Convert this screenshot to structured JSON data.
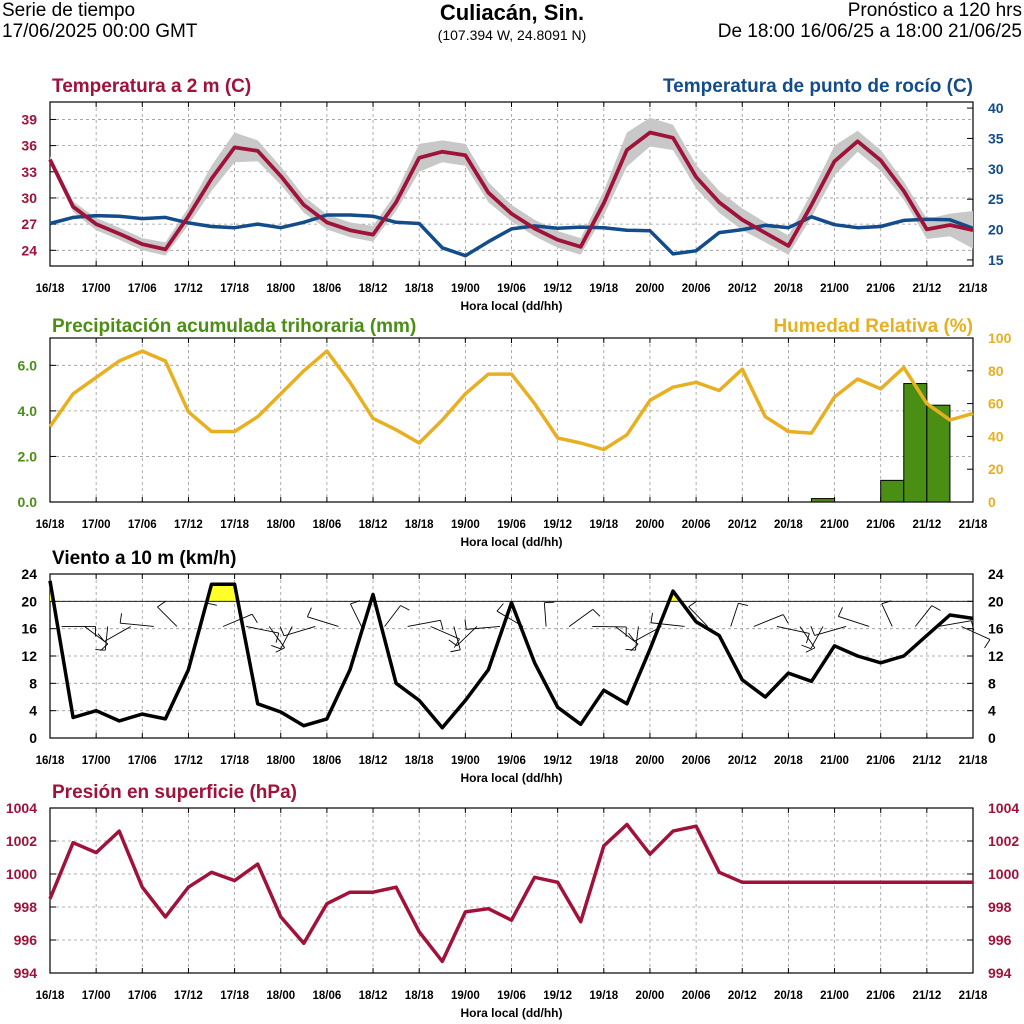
{
  "header": {
    "left_line1": "Serie de tiempo",
    "left_line2": "17/06/2025 00:00 GMT",
    "title": "Culiacán, Sin.",
    "subtitle": "(107.394 W, 24.8091 N)",
    "right_line1": "Pronóstico a 120 hrs",
    "right_line2": "De 18:00 16/06/25 a 18:00 21/06/25"
  },
  "colors": {
    "temperature": "#a0123a",
    "dewpoint": "#124c8a",
    "precip": "#4a8f14",
    "humidity": "#e8b020",
    "wind": "#000000",
    "wind_fill": "#ffff2a",
    "pressure": "#a0123a",
    "band": "#c8c8c8"
  },
  "chart_data": [
    {
      "type": "line",
      "id": "temp",
      "title": "Temperatura a 2 m (C)",
      "title_right": "Temperatura de punto de rocío (C)",
      "xlabel": "Hora local (dd/hh)",
      "x_ticks": [
        "16/18",
        "17/00",
        "17/06",
        "17/12",
        "17/18",
        "18/00",
        "18/06",
        "18/12",
        "18/18",
        "19/00",
        "19/06",
        "19/12",
        "19/18",
        "20/00",
        "20/06",
        "20/12",
        "20/18",
        "21/00",
        "21/06",
        "21/12",
        "21/18"
      ],
      "x_range": [
        0,
        120
      ],
      "ylim_left": [
        22.2,
        41
      ],
      "yticks_left": [
        24,
        27,
        30,
        33,
        36,
        39
      ],
      "ylim_right": [
        14,
        41
      ],
      "yticks_right": [
        15,
        20,
        25,
        30,
        35,
        40
      ],
      "series": [
        {
          "name": "Temperatura a 2 m",
          "axis": "left",
          "x": [
            0,
            3,
            6,
            9,
            12,
            15,
            18,
            21,
            24,
            27,
            30,
            33,
            36,
            39,
            42,
            45,
            48,
            51,
            54,
            57,
            60,
            63,
            66,
            69,
            72,
            75,
            78,
            81,
            84,
            87,
            90,
            93,
            96,
            99,
            102,
            105,
            108,
            111,
            114,
            117,
            120
          ],
          "values": [
            34.4,
            29,
            27,
            25.9,
            24.7,
            24.1,
            27.9,
            32.2,
            35.8,
            35.4,
            32.5,
            29.2,
            27.2,
            26.3,
            25.8,
            29.5,
            34.6,
            35.3,
            34.9,
            30.6,
            28.2,
            26.5,
            25.2,
            24.4,
            29.4,
            35.5,
            37.5,
            36.9,
            32.4,
            29.5,
            27.5,
            26,
            24.5,
            29.2,
            34.2,
            36.5,
            34.3,
            30.8,
            26.4,
            26.9,
            26.3
          ]
        },
        {
          "name": "Temperatura a 2 m (banda alta)",
          "axis": "left",
          "x": [
            0,
            3,
            6,
            9,
            12,
            15,
            18,
            21,
            24,
            27,
            30,
            33,
            36,
            39,
            42,
            45,
            48,
            51,
            54,
            57,
            60,
            63,
            66,
            69,
            72,
            75,
            78,
            81,
            84,
            87,
            90,
            93,
            96,
            99,
            102,
            105,
            108,
            111,
            114,
            117,
            120
          ],
          "values": [
            34.8,
            29.6,
            27.7,
            26.6,
            25.4,
            24.9,
            28.9,
            33.7,
            37.5,
            36.6,
            33.6,
            30.2,
            28.1,
            27.2,
            26.8,
            30.6,
            36.2,
            36.6,
            36.2,
            31.8,
            29.2,
            27.5,
            26.2,
            25.4,
            30.8,
            37.5,
            39.2,
            38.4,
            33.8,
            30.8,
            28.8,
            27.2,
            25.7,
            30.6,
            36,
            37.7,
            35.5,
            31.9,
            27.6,
            28.2,
            28.5
          ]
        },
        {
          "name": "Temperatura a 2 m (banda baja)",
          "axis": "left",
          "x": [
            0,
            3,
            6,
            9,
            12,
            15,
            18,
            21,
            24,
            27,
            30,
            33,
            36,
            39,
            42,
            45,
            48,
            51,
            54,
            57,
            60,
            63,
            66,
            69,
            72,
            75,
            78,
            81,
            84,
            87,
            90,
            93,
            96,
            99,
            102,
            105,
            108,
            111,
            114,
            117,
            120
          ],
          "values": [
            33.9,
            28.4,
            26.3,
            25.2,
            24,
            23.4,
            26.9,
            30.8,
            34.1,
            34.2,
            31.5,
            28.3,
            26.4,
            25.5,
            25,
            28.5,
            33,
            34.1,
            33.7,
            29.5,
            27.3,
            25.6,
            24.3,
            23.5,
            28,
            33.6,
            35.9,
            35.5,
            31.1,
            28.3,
            26.3,
            24.9,
            23.5,
            27.8,
            32.6,
            35.3,
            33.1,
            29.8,
            25.3,
            25.6,
            24.2
          ]
        },
        {
          "name": "Temperatura de punto de rocío",
          "axis": "right",
          "x": [
            0,
            3,
            6,
            9,
            12,
            15,
            18,
            21,
            24,
            27,
            30,
            33,
            36,
            39,
            42,
            45,
            48,
            51,
            54,
            57,
            60,
            63,
            66,
            69,
            72,
            75,
            78,
            81,
            84,
            87,
            90,
            93,
            96,
            99,
            102,
            105,
            108,
            111,
            114,
            117,
            120
          ],
          "values": [
            21,
            22,
            22.3,
            22.2,
            21.8,
            22,
            21.1,
            20.5,
            20.3,
            20.9,
            20.3,
            21.2,
            22.4,
            22.4,
            22.2,
            21.2,
            21,
            17,
            15.7,
            18,
            20.1,
            20.6,
            20.2,
            20.4,
            20.3,
            19.9,
            19.8,
            16,
            16.5,
            19.5,
            20,
            20.7,
            20.3,
            22.1,
            20.8,
            20.3,
            20.5,
            21.5,
            21.7,
            21.6,
            20.2
          ]
        }
      ]
    },
    {
      "type": "bar",
      "id": "precip",
      "title": "Precipitación acumulada trihoraria (mm)",
      "title_right": "Humedad Relativa (%)",
      "xlabel": "Hora local (dd/hh)",
      "x_ticks": [
        "16/18",
        "17/00",
        "17/06",
        "17/12",
        "17/18",
        "18/00",
        "18/06",
        "18/12",
        "18/18",
        "19/00",
        "19/06",
        "19/12",
        "19/18",
        "20/00",
        "20/06",
        "20/12",
        "20/18",
        "21/00",
        "21/06",
        "21/12",
        "21/18"
      ],
      "x_range": [
        0,
        120
      ],
      "ylim_left": [
        0,
        7.2
      ],
      "yticks_left": [
        "0.0",
        "2.0",
        "4.0",
        "6.0"
      ],
      "ylim_right": [
        0,
        100
      ],
      "yticks_right": [
        0,
        20,
        40,
        60,
        80,
        100
      ],
      "bars": {
        "x_start": [
          99,
          108,
          111,
          114
        ],
        "x_end": [
          102,
          111,
          114,
          117
        ],
        "values": [
          0.15,
          0.95,
          5.2,
          4.25
        ]
      },
      "series": [
        {
          "name": "Humedad Relativa",
          "axis": "right",
          "x": [
            0,
            3,
            6,
            9,
            12,
            15,
            18,
            21,
            24,
            27,
            30,
            33,
            36,
            39,
            42,
            45,
            48,
            51,
            54,
            57,
            60,
            63,
            66,
            69,
            72,
            75,
            78,
            81,
            84,
            87,
            90,
            93,
            96,
            99,
            102,
            105,
            108,
            111,
            114,
            117,
            120
          ],
          "values": [
            46,
            66,
            76,
            86,
            92,
            86,
            55,
            43,
            43,
            52,
            66,
            80,
            92,
            73,
            51,
            44,
            36,
            50,
            66,
            78,
            78,
            60,
            39,
            36,
            32,
            41,
            62,
            70,
            73,
            68,
            81,
            52,
            43,
            42,
            64,
            75,
            69,
            82,
            60,
            50,
            54
          ]
        }
      ]
    },
    {
      "type": "line",
      "id": "wind",
      "title": "Viento a 10 m (km/h)",
      "xlabel": "Hora local (dd/hh)",
      "x_ticks": [
        "16/18",
        "17/00",
        "17/06",
        "17/12",
        "17/18",
        "18/00",
        "18/06",
        "18/12",
        "18/18",
        "19/00",
        "19/06",
        "19/12",
        "19/18",
        "20/00",
        "20/06",
        "20/12",
        "20/18",
        "21/00",
        "21/06",
        "21/12",
        "21/18"
      ],
      "x_range": [
        0,
        120
      ],
      "ylim_left": [
        0,
        24
      ],
      "yticks_left": [
        0,
        4,
        8,
        12,
        16,
        20,
        24
      ],
      "ylim_right": [
        0,
        24
      ],
      "yticks_right": [
        0,
        4,
        8,
        12,
        16,
        20,
        24
      ],
      "threshold": 20,
      "series": [
        {
          "name": "Viento a 10 m",
          "axis": "left",
          "x": [
            0,
            3,
            6,
            9,
            12,
            15,
            18,
            21,
            24,
            27,
            30,
            33,
            36,
            39,
            42,
            45,
            48,
            51,
            54,
            57,
            60,
            63,
            66,
            69,
            72,
            75,
            78,
            81,
            84,
            87,
            90,
            93,
            96,
            99,
            102,
            105,
            108,
            111,
            114,
            117,
            120
          ],
          "values": [
            23,
            3,
            4,
            2.5,
            3.5,
            2.8,
            10,
            22.5,
            22.5,
            5,
            3.8,
            1.8,
            2.8,
            10,
            21,
            8,
            5.5,
            1.5,
            5.5,
            10,
            19.8,
            11,
            4.5,
            2,
            7,
            5,
            13,
            21.5,
            17,
            15,
            8.5,
            6,
            9.5,
            8.3,
            13.5,
            12,
            11,
            12,
            15,
            18,
            17.5
          ]
        }
      ],
      "barbs": {
        "count": 40,
        "speed_source": "Viento a 10 m"
      }
    },
    {
      "type": "line",
      "id": "pressure",
      "title": "Presión en superficie (hPa)",
      "xlabel": "Hora local (dd/hh)",
      "x_ticks": [
        "16/18",
        "17/00",
        "17/06",
        "17/12",
        "17/18",
        "18/00",
        "18/06",
        "18/12",
        "18/18",
        "19/00",
        "19/06",
        "19/12",
        "19/18",
        "20/00",
        "20/06",
        "20/12",
        "20/18",
        "21/00",
        "21/06",
        "21/12",
        "21/18"
      ],
      "x_range": [
        0,
        120
      ],
      "ylim_left": [
        994,
        1004
      ],
      "yticks_left": [
        994,
        996,
        998,
        1000,
        1002,
        1004
      ],
      "ylim_right": [
        994,
        1004
      ],
      "yticks_right": [
        994,
        996,
        998,
        1000,
        1002,
        1004
      ],
      "series": [
        {
          "name": "Presión en superficie",
          "axis": "left",
          "x": [
            0,
            3,
            6,
            9,
            12,
            15,
            18,
            21,
            24,
            27,
            30,
            33,
            36,
            39,
            42,
            45,
            48,
            51,
            54,
            57,
            60,
            63,
            66,
            69,
            72,
            75,
            78,
            81,
            84,
            87,
            90,
            93,
            96,
            99,
            102,
            105,
            108,
            111,
            114,
            117,
            120
          ],
          "values": [
            998.5,
            1001.9,
            1001.3,
            1002.6,
            999.2,
            997.4,
            999.2,
            1000.1,
            999.6,
            1000.6,
            997.4,
            995.8,
            998.2,
            998.9,
            998.9,
            999.2,
            996.5,
            994.7,
            997.7,
            997.9,
            997.2,
            999.8,
            999.5,
            997.1,
            1001.7,
            1003,
            1001.2,
            1002.6,
            1002.9,
            1000.1,
            999.5,
            999.5,
            999.5,
            999.5,
            999.5,
            999.5,
            999.5,
            999.5,
            999.5,
            999.5,
            999.5
          ]
        }
      ]
    }
  ]
}
